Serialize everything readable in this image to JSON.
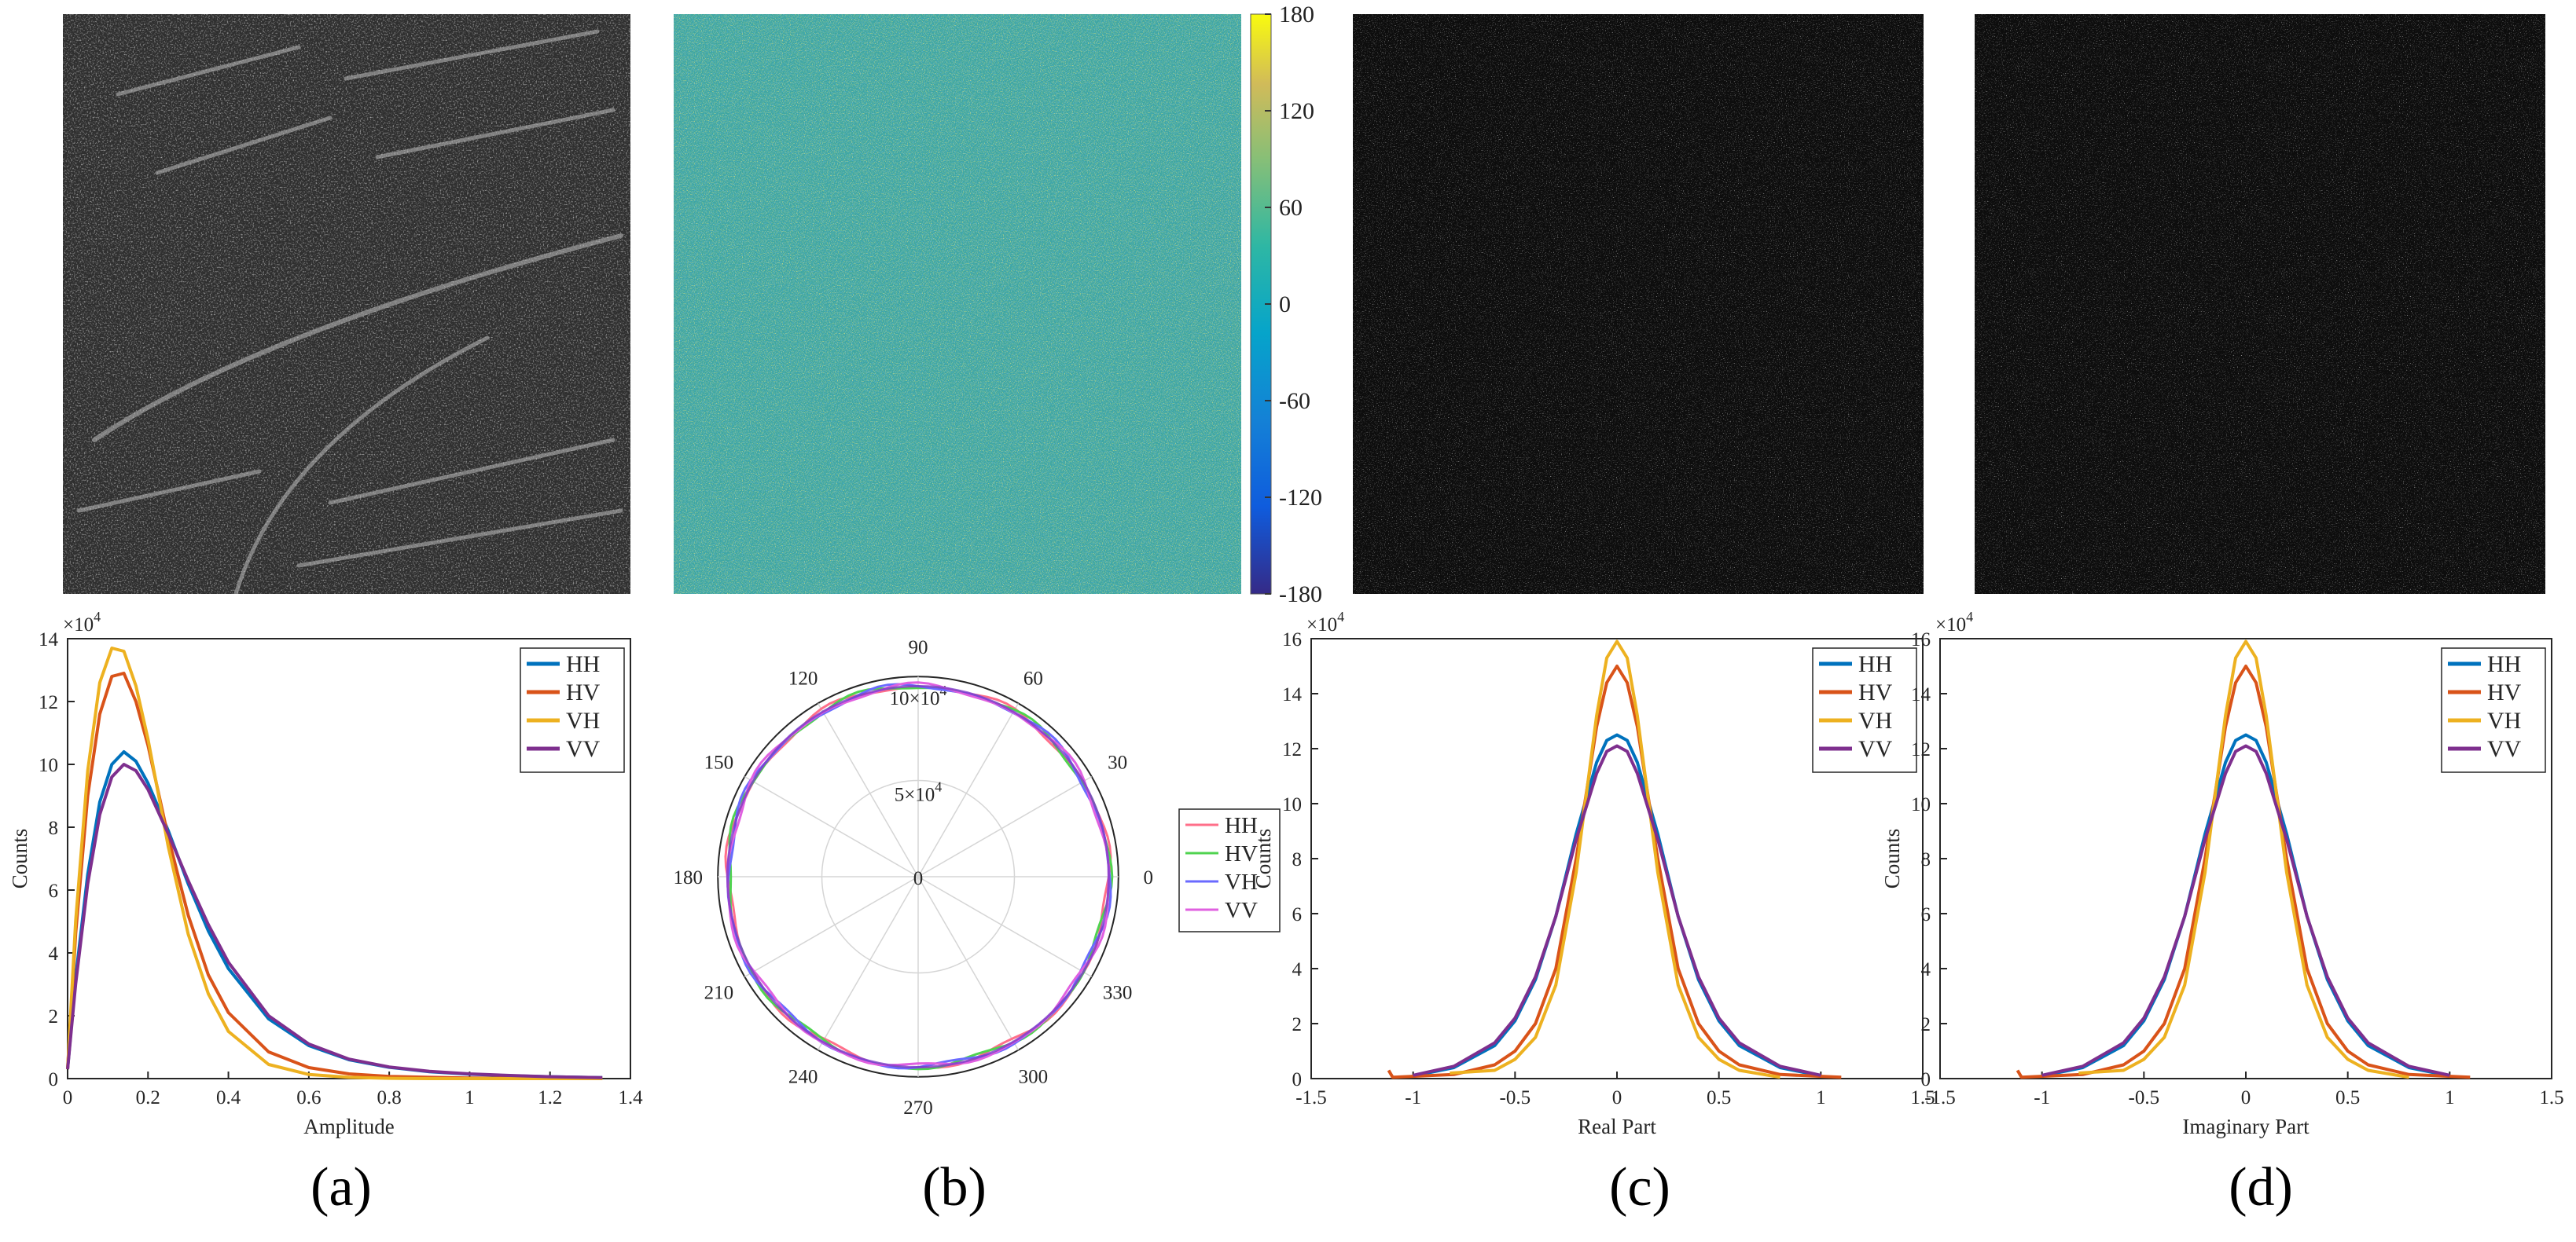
{
  "colors": {
    "HH": "#0072BD",
    "HV": "#D95319",
    "VH": "#EDB120",
    "VV": "#7E2F8E",
    "polar_HH": "#ff6f8a",
    "polar_HV": "#4fd34f",
    "polar_VH": "#6a6aff",
    "polar_VV": "#e060e0"
  },
  "panels": [
    {
      "label": "(a)",
      "image": "sar-amplitude-image"
    },
    {
      "label": "(b)",
      "image": "phase-image"
    },
    {
      "label": "(c)",
      "image": "real-part-image"
    },
    {
      "label": "(d)",
      "image": "imaginary-part-image"
    }
  ],
  "colorbar": {
    "ticks": [
      "180",
      "120",
      "60",
      "0",
      "-60",
      "-120",
      "-180"
    ],
    "range": [
      -180,
      180
    ],
    "colormap": "parula"
  },
  "chart_data": [
    {
      "type": "line",
      "panel": "(a)",
      "xlabel": "Amplitude",
      "ylabel": "Counts",
      "xlim": [
        0,
        1.4
      ],
      "ylim": [
        0,
        14
      ],
      "y_multiplier": "×10",
      "y_multiplier_exp": "4",
      "xticks": [
        "0",
        "0.2",
        "0.4",
        "0.6",
        "0.8",
        "1",
        "1.2",
        "1.4"
      ],
      "yticks": [
        "0",
        "2",
        "4",
        "6",
        "8",
        "10",
        "12",
        "14"
      ],
      "legend": "top-right",
      "series": [
        {
          "name": "HH",
          "x": [
            0,
            0.02,
            0.05,
            0.08,
            0.11,
            0.14,
            0.17,
            0.2,
            0.25,
            0.3,
            0.35,
            0.4,
            0.5,
            0.6,
            0.7,
            0.8,
            0.9,
            1.0,
            1.1,
            1.2,
            1.33
          ],
          "values": [
            0.3,
            3.2,
            6.5,
            8.8,
            10.0,
            10.4,
            10.1,
            9.4,
            7.9,
            6.2,
            4.7,
            3.5,
            1.9,
            1.05,
            0.6,
            0.36,
            0.22,
            0.14,
            0.09,
            0.06,
            0.03
          ]
        },
        {
          "name": "HV",
          "x": [
            0,
            0.02,
            0.05,
            0.08,
            0.11,
            0.14,
            0.17,
            0.2,
            0.25,
            0.3,
            0.35,
            0.4,
            0.5,
            0.6,
            0.7,
            0.8,
            0.9,
            1.0,
            1.1,
            1.2,
            1.33
          ],
          "values": [
            0.3,
            4.6,
            9.0,
            11.6,
            12.8,
            12.9,
            12.0,
            10.6,
            7.7,
            5.2,
            3.3,
            2.1,
            0.85,
            0.35,
            0.15,
            0.07,
            0.04,
            0.02,
            0.01,
            0.005,
            0
          ]
        },
        {
          "name": "VH",
          "x": [
            0,
            0.02,
            0.05,
            0.08,
            0.11,
            0.14,
            0.17,
            0.2,
            0.25,
            0.3,
            0.35,
            0.4,
            0.5,
            0.6,
            0.7,
            0.8,
            0.9,
            1.0,
            1.1,
            1.2,
            1.33
          ],
          "values": [
            0.3,
            5.0,
            9.8,
            12.6,
            13.7,
            13.6,
            12.5,
            10.8,
            7.4,
            4.6,
            2.7,
            1.5,
            0.45,
            0.13,
            0.04,
            0.01,
            0,
            0,
            0,
            0,
            0
          ]
        },
        {
          "name": "VV",
          "x": [
            0,
            0.02,
            0.05,
            0.08,
            0.11,
            0.14,
            0.17,
            0.2,
            0.25,
            0.3,
            0.35,
            0.4,
            0.5,
            0.6,
            0.7,
            0.8,
            0.9,
            1.0,
            1.1,
            1.2,
            1.33
          ],
          "values": [
            0.3,
            3.0,
            6.2,
            8.4,
            9.6,
            10.0,
            9.8,
            9.2,
            7.8,
            6.3,
            4.9,
            3.7,
            2.0,
            1.1,
            0.62,
            0.37,
            0.23,
            0.15,
            0.1,
            0.06,
            0.03
          ]
        }
      ]
    },
    {
      "type": "polar",
      "panel": "(b)",
      "angle_ticks": [
        "0",
        "30",
        "60",
        "90",
        "120",
        "150",
        "180",
        "210",
        "240",
        "270",
        "300",
        "330"
      ],
      "r_max": 10,
      "r_ticks": [
        {
          "value": 0,
          "label": "0",
          "mult": "",
          "exp": ""
        },
        {
          "value": 5,
          "label": "5",
          "mult": "×10",
          "exp": "4"
        },
        {
          "value": 10,
          "label": "10",
          "mult": "×10",
          "exp": "4"
        }
      ],
      "legend": "right",
      "series": [
        {
          "name": "HH",
          "r": 9.9
        },
        {
          "name": "HV",
          "r": 9.9
        },
        {
          "name": "VH",
          "r": 9.9
        },
        {
          "name": "VV",
          "r": 9.9
        }
      ]
    },
    {
      "type": "line",
      "panel": "(c)",
      "xlabel": "Real Part",
      "ylabel": "Counts",
      "xlim": [
        -1.5,
        1.5
      ],
      "ylim": [
        0,
        16
      ],
      "y_multiplier": "×10",
      "y_multiplier_exp": "4",
      "xticks": [
        "-1.5",
        "-1",
        "-0.5",
        "0",
        "0.5",
        "1",
        "1.5"
      ],
      "yticks": [
        "0",
        "2",
        "4",
        "6",
        "8",
        "10",
        "12",
        "14",
        "16"
      ],
      "legend": "top-right",
      "series": [
        {
          "name": "HH",
          "x": [
            -1.0,
            -0.8,
            -0.6,
            -0.5,
            -0.4,
            -0.3,
            -0.2,
            -0.1,
            -0.05,
            0,
            0.05,
            0.1,
            0.2,
            0.3,
            0.4,
            0.5,
            0.6,
            0.8,
            1.0
          ],
          "values": [
            0.1,
            0.4,
            1.2,
            2.1,
            3.6,
            5.9,
            8.9,
            11.5,
            12.3,
            12.5,
            12.3,
            11.5,
            8.9,
            5.9,
            3.6,
            2.1,
            1.2,
            0.4,
            0.1
          ]
        },
        {
          "name": "HV",
          "x": [
            -1.12,
            -1.1,
            -0.8,
            -0.6,
            -0.5,
            -0.4,
            -0.3,
            -0.2,
            -0.1,
            -0.05,
            0,
            0.05,
            0.1,
            0.2,
            0.3,
            0.4,
            0.5,
            0.6,
            0.8,
            1.1
          ],
          "values": [
            0.3,
            0.05,
            0.15,
            0.5,
            1.0,
            2.0,
            4.0,
            8.0,
            12.8,
            14.4,
            15.0,
            14.4,
            12.8,
            8.0,
            4.0,
            2.0,
            1.0,
            0.5,
            0.15,
            0.05
          ]
        },
        {
          "name": "VH",
          "x": [
            -0.82,
            -0.6,
            -0.5,
            -0.4,
            -0.3,
            -0.2,
            -0.1,
            -0.05,
            0,
            0.05,
            0.1,
            0.2,
            0.3,
            0.4,
            0.5,
            0.6,
            0.8
          ],
          "values": [
            0.2,
            0.3,
            0.7,
            1.5,
            3.4,
            7.5,
            13.2,
            15.3,
            15.9,
            15.3,
            13.2,
            7.5,
            3.4,
            1.5,
            0.7,
            0.3,
            0.05
          ]
        },
        {
          "name": "VV",
          "x": [
            -1.0,
            -0.8,
            -0.6,
            -0.5,
            -0.4,
            -0.3,
            -0.2,
            -0.1,
            -0.05,
            0,
            0.05,
            0.1,
            0.2,
            0.3,
            0.4,
            0.5,
            0.6,
            0.8,
            1.0
          ],
          "values": [
            0.12,
            0.45,
            1.3,
            2.2,
            3.7,
            5.9,
            8.7,
            11.1,
            11.9,
            12.1,
            11.9,
            11.1,
            8.7,
            5.9,
            3.7,
            2.2,
            1.3,
            0.45,
            0.12
          ]
        }
      ]
    },
    {
      "type": "line",
      "panel": "(d)",
      "xlabel": "Imaginary Part",
      "ylabel": "Counts",
      "xlim": [
        -1.5,
        1.5
      ],
      "ylim": [
        0,
        16
      ],
      "y_multiplier": "×10",
      "y_multiplier_exp": "4",
      "xticks": [
        "-1.5",
        "-1",
        "-0.5",
        "0",
        "0.5",
        "1",
        "1.5"
      ],
      "yticks": [
        "0",
        "2",
        "4",
        "6",
        "8",
        "10",
        "12",
        "14",
        "16"
      ],
      "legend": "top-right",
      "series": [
        {
          "name": "HH",
          "x": [
            -1.0,
            -0.8,
            -0.6,
            -0.5,
            -0.4,
            -0.3,
            -0.2,
            -0.1,
            -0.05,
            0,
            0.05,
            0.1,
            0.2,
            0.3,
            0.4,
            0.5,
            0.6,
            0.8,
            1.0
          ],
          "values": [
            0.1,
            0.4,
            1.2,
            2.1,
            3.6,
            5.9,
            8.9,
            11.5,
            12.3,
            12.5,
            12.3,
            11.5,
            8.9,
            5.9,
            3.6,
            2.1,
            1.2,
            0.4,
            0.1
          ]
        },
        {
          "name": "HV",
          "x": [
            -1.12,
            -1.1,
            -0.8,
            -0.6,
            -0.5,
            -0.4,
            -0.3,
            -0.2,
            -0.1,
            -0.05,
            0,
            0.05,
            0.1,
            0.2,
            0.3,
            0.4,
            0.5,
            0.6,
            0.8,
            1.1
          ],
          "values": [
            0.3,
            0.05,
            0.15,
            0.5,
            1.0,
            2.0,
            4.0,
            8.0,
            12.8,
            14.4,
            15.0,
            14.4,
            12.8,
            8.0,
            4.0,
            2.0,
            1.0,
            0.5,
            0.15,
            0.05
          ]
        },
        {
          "name": "VH",
          "x": [
            -0.82,
            -0.6,
            -0.5,
            -0.4,
            -0.3,
            -0.2,
            -0.1,
            -0.05,
            0,
            0.05,
            0.1,
            0.2,
            0.3,
            0.4,
            0.5,
            0.6,
            0.8
          ],
          "values": [
            0.2,
            0.3,
            0.7,
            1.5,
            3.4,
            7.5,
            13.2,
            15.3,
            15.9,
            15.3,
            13.2,
            7.5,
            3.4,
            1.5,
            0.7,
            0.3,
            0.05
          ]
        },
        {
          "name": "VV",
          "x": [
            -1.0,
            -0.8,
            -0.6,
            -0.5,
            -0.4,
            -0.3,
            -0.2,
            -0.1,
            -0.05,
            0,
            0.05,
            0.1,
            0.2,
            0.3,
            0.4,
            0.5,
            0.6,
            0.8,
            1.0
          ],
          "values": [
            0.12,
            0.45,
            1.3,
            2.2,
            3.7,
            5.9,
            8.7,
            11.1,
            11.9,
            12.1,
            11.9,
            11.1,
            8.7,
            5.9,
            3.7,
            2.2,
            1.3,
            0.45,
            0.12
          ]
        }
      ]
    }
  ]
}
